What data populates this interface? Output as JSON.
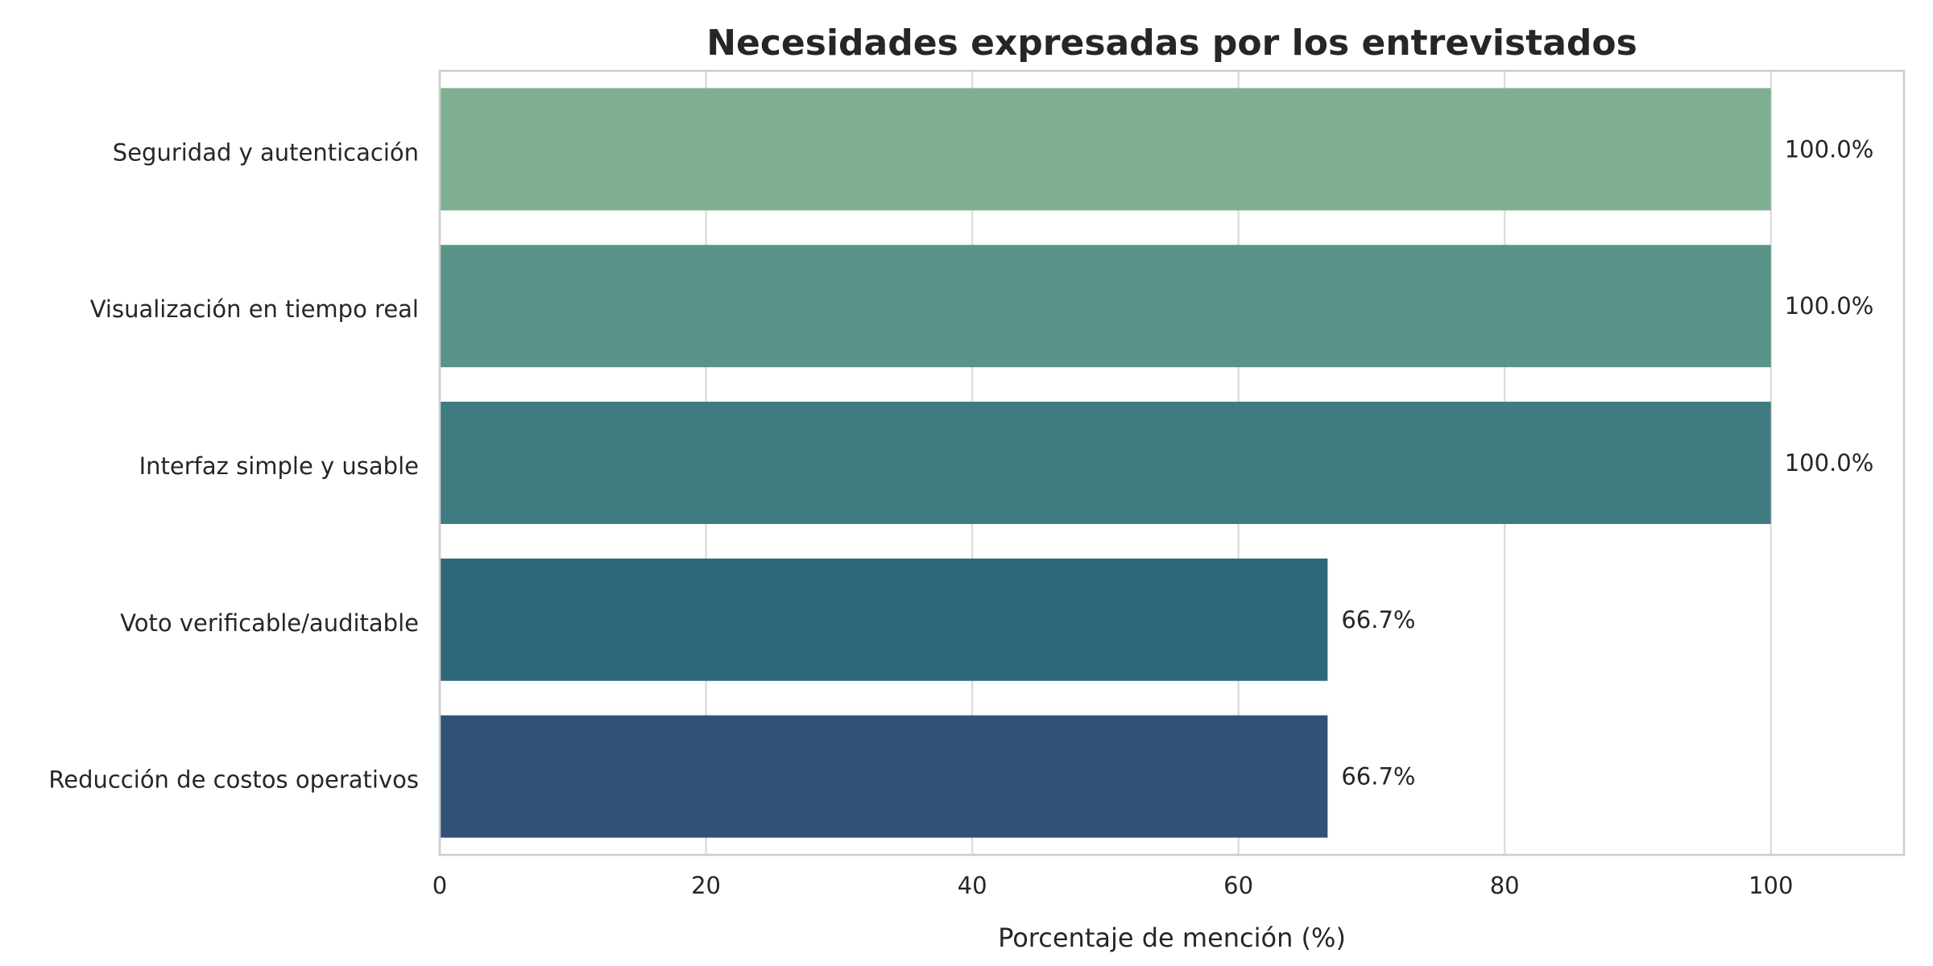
{
  "chart_data": {
    "type": "bar",
    "orientation": "horizontal",
    "title": "Necesidades expresadas por los entrevistados",
    "xlabel": "Porcentaje de mención (%)",
    "ylabel": "",
    "xlim": [
      0,
      110
    ],
    "xticks": [
      "0",
      "20",
      "40",
      "60",
      "80",
      "100"
    ],
    "categories": [
      "Seguridad y autenticación",
      "Visualización en tiempo real",
      "Interfaz simple y usable",
      "Voto verificable/auditable",
      "Reducción de costos operativos"
    ],
    "values": [
      100.0,
      100.0,
      100.0,
      66.7,
      66.7
    ],
    "data_labels": [
      "100.0%",
      "100.0%",
      "100.0%",
      "66.7%",
      "66.7%"
    ],
    "colors": [
      "#7fb092",
      "#5a9489",
      "#3f7b81",
      "#2e677c",
      "#2f5276"
    ],
    "grid": true,
    "legend": "none"
  }
}
